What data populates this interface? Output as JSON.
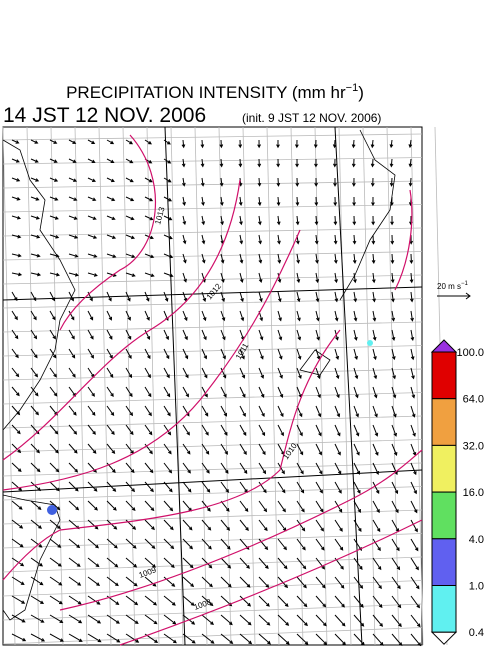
{
  "header": {
    "title": {
      "text": "PRECIPITATION INTENSITY (mm hr",
      "superscript": "−1",
      "closing": ")"
    },
    "valid_time": "14 JST 12 NOV. 2006",
    "init_time": "(init. 9 JST 12 NOV. 2006)"
  },
  "wind_scale": {
    "text": "20 m s",
    "superscript": "−1"
  },
  "contour_labels": [
    "1013",
    "1012",
    "1011",
    "1010",
    "1009",
    "1008"
  ],
  "colorbar": {
    "labels": [
      "100.0",
      "64.0",
      "32.0",
      "16.0",
      "4.0",
      "1.0",
      "0.4"
    ],
    "colors": [
      "#9a30e0",
      "#e00000",
      "#f0a040",
      "#f0f060",
      "#60e060",
      "#6060f0",
      "#60f0f0",
      "#ffffff"
    ]
  }
}
